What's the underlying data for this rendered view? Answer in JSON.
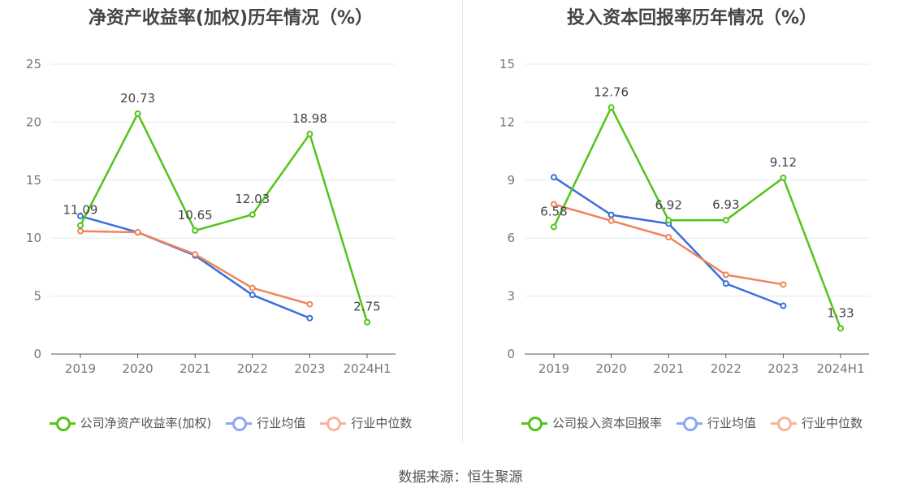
{
  "colors": {
    "company": "#52c41a",
    "industry_avg": "#3a6fdc",
    "industry_median": "#f0845a",
    "legend_avg": "#8aa8ee",
    "legend_median": "#f7b49a",
    "grid": "#e6e8ef",
    "axis_text": "#777777"
  },
  "source": "数据来源：恒生聚源",
  "chart_data": [
    {
      "type": "line",
      "title": "净资产收益率(加权)历年情况（%）",
      "categories": [
        "2019",
        "2020",
        "2021",
        "2022",
        "2023",
        "2024H1"
      ],
      "ylim": [
        0,
        25
      ],
      "yticks": [
        0,
        5,
        10,
        15,
        20,
        25
      ],
      "ytick_labels": [
        "0",
        "5",
        "10",
        "15",
        "20",
        "25"
      ],
      "grid": true,
      "legend_position": "bottom",
      "series": [
        {
          "name": "公司净资产收益率(加权)",
          "key": "company",
          "values": [
            11.09,
            20.73,
            10.65,
            12.03,
            18.98,
            2.75
          ],
          "labels": [
            "11.09",
            "20.73",
            "10.65",
            "12.03",
            "18.98",
            "2.75"
          ]
        },
        {
          "name": "行业均值",
          "key": "industry_avg",
          "values": [
            11.9,
            10.5,
            8.5,
            5.1,
            3.1,
            null
          ]
        },
        {
          "name": "行业中位数",
          "key": "industry_median",
          "values": [
            10.6,
            10.5,
            8.6,
            5.7,
            4.3,
            null
          ]
        }
      ]
    },
    {
      "type": "line",
      "title": "投入资本回报率历年情况（%）",
      "categories": [
        "2019",
        "2020",
        "2021",
        "2022",
        "2023",
        "2024H1"
      ],
      "ylim": [
        0,
        15
      ],
      "yticks": [
        0,
        3,
        6,
        9,
        12,
        15
      ],
      "ytick_labels": [
        "0",
        "3",
        "6",
        "9",
        "12",
        "15"
      ],
      "grid": true,
      "legend_position": "bottom",
      "series": [
        {
          "name": "公司投入资本回报率",
          "key": "company",
          "values": [
            6.58,
            12.76,
            6.92,
            6.93,
            9.12,
            1.33
          ],
          "labels": [
            "6.58",
            "12.76",
            "6.92",
            "6.93",
            "9.12",
            "1.33"
          ]
        },
        {
          "name": "行业均值",
          "key": "industry_avg",
          "values": [
            9.15,
            7.2,
            6.75,
            3.65,
            2.5,
            null
          ]
        },
        {
          "name": "行业中位数",
          "key": "industry_median",
          "values": [
            7.75,
            6.9,
            6.05,
            4.1,
            3.6,
            null
          ]
        }
      ]
    }
  ]
}
